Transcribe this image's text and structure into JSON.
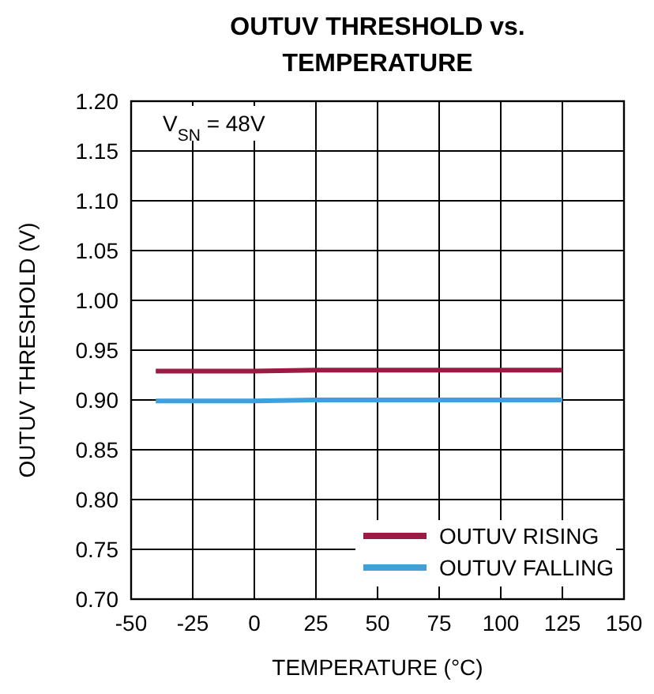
{
  "chart_data": {
    "type": "line",
    "title": "OUTUV THRESHOLD vs. TEMPERATURE",
    "xlabel": "TEMPERATURE (°C)",
    "ylabel": "OUTUV THRESHOLD (V)",
    "annotations": [
      "V$_{SN}$ = 48V"
    ],
    "series": [
      {
        "name": "OUTUV RISING",
        "color": "#9b1b45",
        "x": [
          -40,
          0,
          25,
          50,
          85,
          125
        ],
        "values": [
          0.929,
          0.929,
          0.93,
          0.93,
          0.93,
          0.93
        ]
      },
      {
        "name": "OUTUV FALLING",
        "color": "#3fa0dc",
        "x": [
          -40,
          0,
          25,
          50,
          85,
          125
        ],
        "values": [
          0.899,
          0.899,
          0.9,
          0.9,
          0.9,
          0.9
        ]
      }
    ],
    "xlim": [
      -50,
      150
    ],
    "xticks": [
      -50,
      -25,
      0,
      25,
      50,
      75,
      100,
      125,
      150
    ],
    "ylim": [
      0.7,
      1.2
    ],
    "yticks": [
      {
        "value": 0.7,
        "label": "0.70"
      },
      {
        "value": 0.75,
        "label": "0.75"
      },
      {
        "value": 0.8,
        "label": "0.80"
      },
      {
        "value": 0.85,
        "label": "0.85"
      },
      {
        "value": 0.9,
        "label": "0.90"
      },
      {
        "value": 0.95,
        "label": "0.95"
      },
      {
        "value": 1.0,
        "label": "1.00"
      },
      {
        "value": 1.05,
        "label": "1.05"
      },
      {
        "value": 1.1,
        "label": "1.10"
      },
      {
        "value": 1.15,
        "label": "1.15"
      },
      {
        "value": 1.2,
        "label": "1.20"
      }
    ],
    "grid": true,
    "legend": "bottom right",
    "marker": "none",
    "line_style": "solid"
  }
}
